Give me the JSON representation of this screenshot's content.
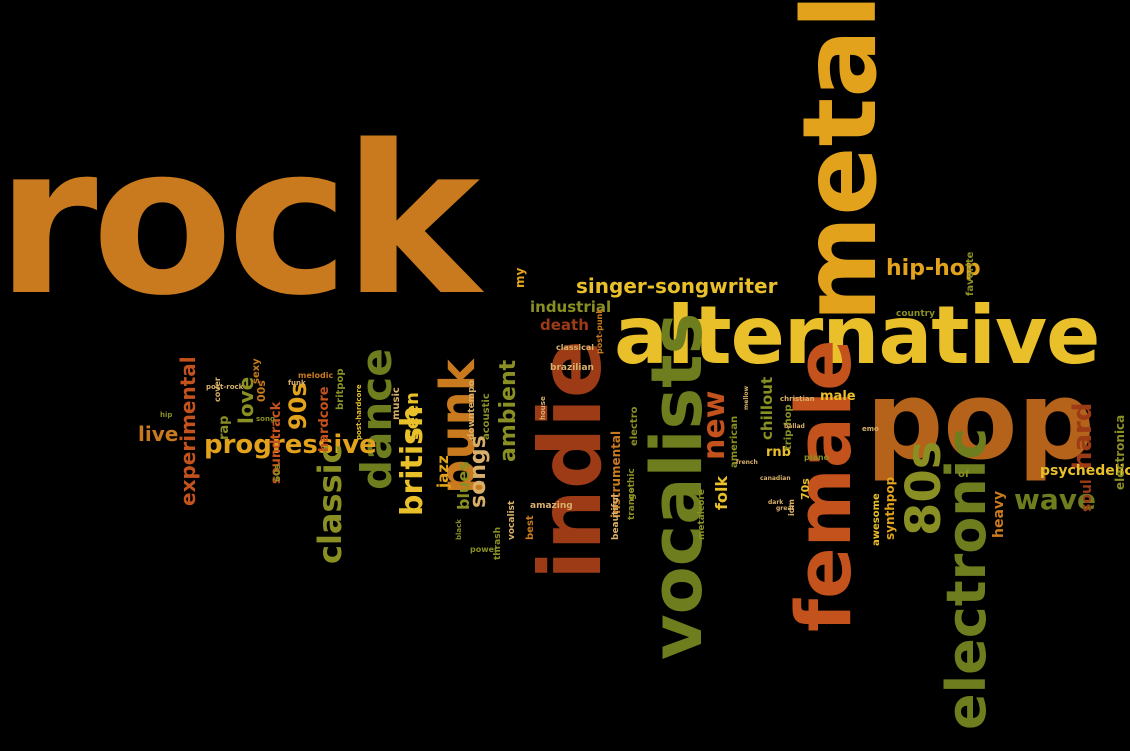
{
  "palette": {
    "background": "#000000",
    "orange": "#C97A1E",
    "dark_orange": "#B5621A",
    "gold": "#E2A21C",
    "yellow": "#E9C02A",
    "olive": "#6E7D1E",
    "olive_light": "#8A8F24",
    "rust": "#9C3B16",
    "red_orange": "#C4521C",
    "tan": "#D8B06A"
  },
  "words": [
    {
      "text": "rock",
      "color": "orange"
    },
    {
      "text": "metal",
      "color": "gold"
    },
    {
      "text": "alternative",
      "color": "yellow"
    },
    {
      "text": "pop",
      "color": "dark_orange"
    },
    {
      "text": "indie",
      "color": "rust"
    },
    {
      "text": "vocalists",
      "color": "olive"
    },
    {
      "text": "female",
      "color": "red_orange"
    },
    {
      "text": "electronic",
      "color": "olive"
    },
    {
      "text": "80s",
      "color": "olive_light"
    },
    {
      "text": "punk",
      "color": "orange"
    },
    {
      "text": "dance",
      "color": "olive"
    },
    {
      "text": "progressive",
      "color": "gold"
    },
    {
      "text": "classic",
      "color": "olive_light"
    },
    {
      "text": "british",
      "color": "yellow"
    },
    {
      "text": "singer-songwriter",
      "color": "yellow"
    },
    {
      "text": "hip-hop",
      "color": "gold"
    },
    {
      "text": "new",
      "color": "red_orange"
    },
    {
      "text": "wave",
      "color": "olive"
    },
    {
      "text": "hard",
      "color": "rust"
    },
    {
      "text": "psychedelic",
      "color": "yellow"
    },
    {
      "text": "ambient",
      "color": "olive_light"
    },
    {
      "text": "songs",
      "color": "tan"
    },
    {
      "text": "90s",
      "color": "gold"
    },
    {
      "text": "experimental",
      "color": "red_orange"
    },
    {
      "text": "love",
      "color": "olive_light"
    },
    {
      "text": "live",
      "color": "orange"
    },
    {
      "text": "industrial",
      "color": "olive_light"
    },
    {
      "text": "death",
      "color": "rust"
    },
    {
      "text": "seen",
      "color": "yellow"
    },
    {
      "text": "blues",
      "color": "olive_light"
    },
    {
      "text": "jazz",
      "color": "gold"
    },
    {
      "text": "folk",
      "color": "yellow"
    },
    {
      "text": "chillout",
      "color": "olive_light"
    },
    {
      "text": "instrumental",
      "color": "orange"
    },
    {
      "text": "soundtrack",
      "color": "red_orange"
    },
    {
      "text": "hardcore",
      "color": "red_orange"
    },
    {
      "text": "rap",
      "color": "olive_light"
    },
    {
      "text": "heavy",
      "color": "orange"
    },
    {
      "text": "soul",
      "color": "rust"
    },
    {
      "text": "electronica",
      "color": "olive_light"
    },
    {
      "text": "male",
      "color": "yellow"
    },
    {
      "text": "rnb",
      "color": "yellow"
    },
    {
      "text": "synthpop",
      "color": "gold"
    },
    {
      "text": "awesome",
      "color": "yellow"
    },
    {
      "text": "my",
      "color": "gold"
    },
    {
      "text": "trip-hop",
      "color": "olive_light"
    },
    {
      "text": "70s",
      "color": "yellow"
    },
    {
      "text": "american",
      "color": "olive_light"
    },
    {
      "text": "sexy",
      "color": "orange"
    },
    {
      "text": "00s",
      "color": "orange"
    },
    {
      "text": "britpop",
      "color": "olive_light"
    },
    {
      "text": "cover",
      "color": "tan"
    },
    {
      "text": "60s",
      "color": "olive_light"
    },
    {
      "text": "metalcore",
      "color": "olive_light"
    },
    {
      "text": "music",
      "color": "tan"
    },
    {
      "text": "favorite",
      "color": "olive_light"
    },
    {
      "text": "country",
      "color": "olive_light"
    },
    {
      "text": "best",
      "color": "orange"
    },
    {
      "text": "vocalist",
      "color": "tan"
    },
    {
      "text": "amazing",
      "color": "tan"
    },
    {
      "text": "gothic",
      "color": "olive_light"
    },
    {
      "text": "trance",
      "color": "olive_light"
    },
    {
      "text": "electro",
      "color": "olive_light"
    },
    {
      "text": "beautiful",
      "color": "tan"
    },
    {
      "text": "classical",
      "color": "tan"
    },
    {
      "text": "brazilian",
      "color": "tan"
    },
    {
      "text": "post-punk",
      "color": "orange"
    },
    {
      "text": "post-rock",
      "color": "tan"
    },
    {
      "text": "melodic",
      "color": "orange"
    },
    {
      "text": "funk",
      "color": "tan"
    },
    {
      "text": "song",
      "color": "olive_light"
    },
    {
      "text": "downtempo",
      "color": "tan"
    },
    {
      "text": "acoustic",
      "color": "olive_light"
    },
    {
      "text": "post-hardcore",
      "color": "yellow"
    },
    {
      "text": "thrash",
      "color": "olive_light"
    },
    {
      "text": "power",
      "color": "olive_light"
    },
    {
      "text": "black",
      "color": "olive_light"
    },
    {
      "text": "idm",
      "color": "tan"
    },
    {
      "text": "piano",
      "color": "olive_light"
    },
    {
      "text": "christian",
      "color": "tan"
    },
    {
      "text": "ballad",
      "color": "tan"
    },
    {
      "text": "canadian",
      "color": "tan"
    },
    {
      "text": "house",
      "color": "tan"
    },
    {
      "text": "of",
      "color": "olive_light"
    },
    {
      "text": "emo",
      "color": "tan"
    },
    {
      "text": "hip",
      "color": "olive_light"
    },
    {
      "text": "dark",
      "color": "tan"
    },
    {
      "text": "great",
      "color": "tan"
    },
    {
      "text": "french",
      "color": "tan"
    },
    {
      "text": "mellow",
      "color": "tan"
    }
  ]
}
